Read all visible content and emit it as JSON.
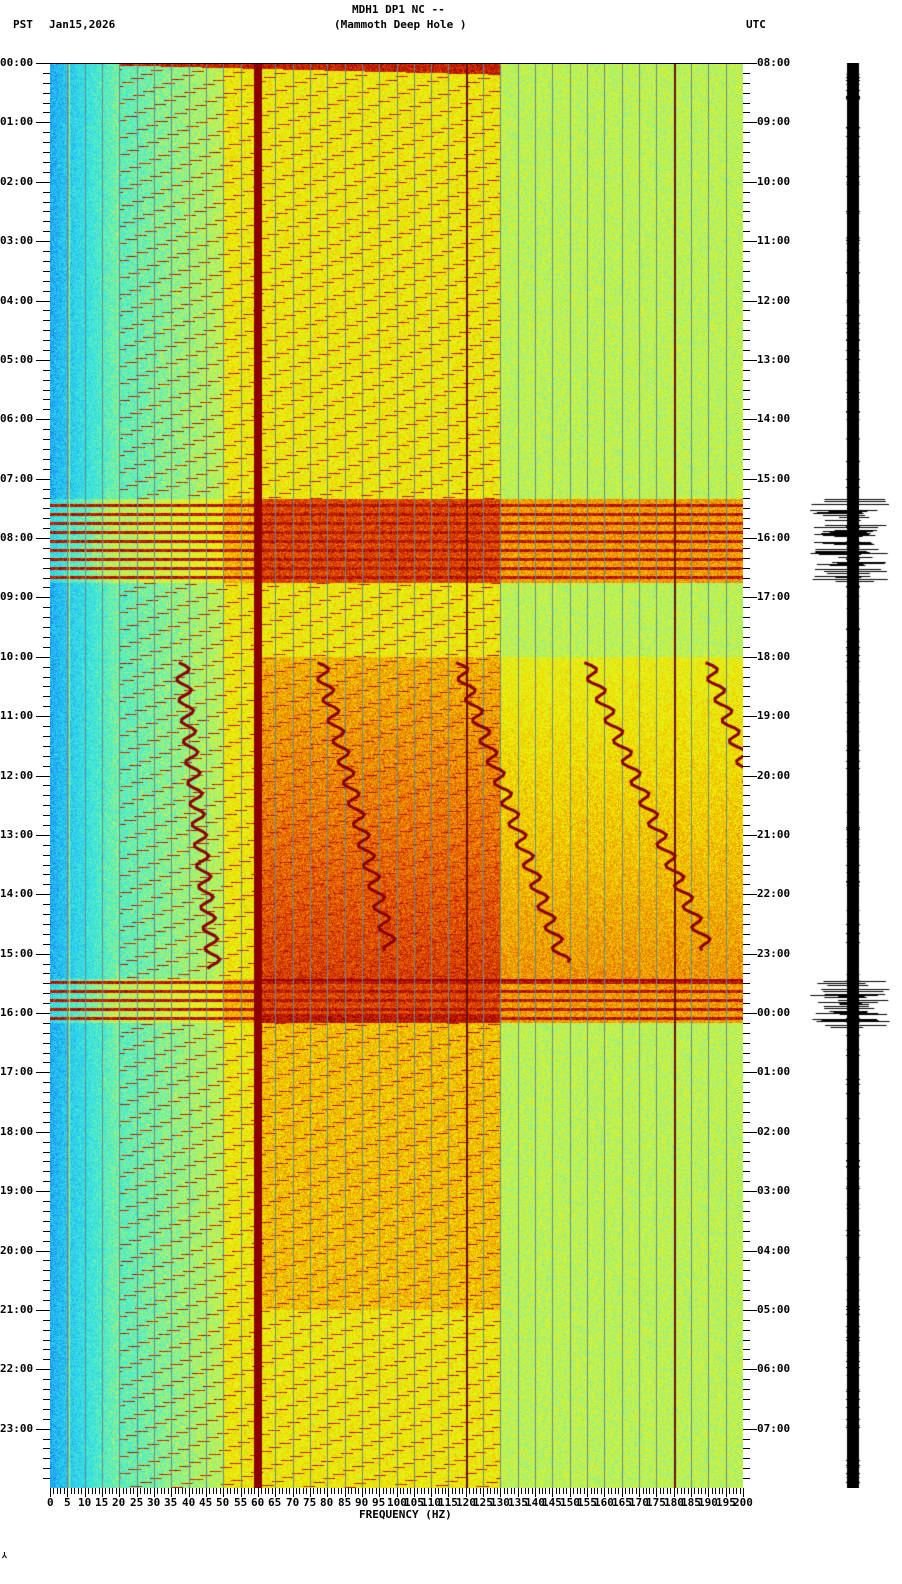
{
  "header": {
    "station_line": "MDH1 DP1 NC --",
    "site_line": "(Mammoth Deep Hole )",
    "left_tz": "PST",
    "date": "Jan15,2026",
    "right_tz": "UTC"
  },
  "footer": {
    "xlabel": "FREQUENCY (HZ)",
    "corner_mark": "⅄"
  },
  "colors": {
    "colormap": [
      "#0a3cc8",
      "#1e8cf0",
      "#28d2f0",
      "#50f0c8",
      "#c8f050",
      "#f0f000",
      "#f0a000",
      "#e03c00",
      "#9a0000"
    ],
    "trace": "#000000",
    "gridline": "#6a8a8a"
  },
  "chart_data": [
    {
      "type": "heatmap",
      "title": "MDH1 DP1 NC -- (Mammoth Deep Hole )",
      "subtitle": "Jan15,2026",
      "xlabel": "FREQUENCY (HZ)",
      "ylabel_left": "PST",
      "ylabel_right": "UTC",
      "xlim": [
        0,
        200
      ],
      "x_ticks": [
        0,
        5,
        10,
        15,
        20,
        25,
        30,
        35,
        40,
        45,
        50,
        55,
        60,
        65,
        70,
        75,
        80,
        85,
        90,
        95,
        100,
        105,
        110,
        115,
        120,
        125,
        130,
        135,
        140,
        145,
        150,
        155,
        160,
        165,
        170,
        175,
        180,
        185,
        190,
        195,
        200
      ],
      "y_ticks_left": [
        "00:00",
        "01:00",
        "02:00",
        "03:00",
        "04:00",
        "05:00",
        "06:00",
        "07:00",
        "08:00",
        "09:00",
        "10:00",
        "11:00",
        "12:00",
        "13:00",
        "14:00",
        "15:00",
        "16:00",
        "17:00",
        "18:00",
        "19:00",
        "20:00",
        "21:00",
        "22:00",
        "23:00"
      ],
      "y_ticks_right": [
        "08:00",
        "09:00",
        "10:00",
        "11:00",
        "12:00",
        "13:00",
        "14:00",
        "15:00",
        "16:00",
        "17:00",
        "18:00",
        "19:00",
        "20:00",
        "21:00",
        "22:00",
        "23:00",
        "00:00",
        "01:00",
        "02:00",
        "03:00",
        "04:00",
        "05:00",
        "06:00",
        "07:00"
      ],
      "y_minor_ticks_per_hour": 6,
      "grid": true,
      "grid_spacing_hz": 5,
      "features": {
        "persistent_lines_hz": [
          60,
          120,
          180
        ],
        "dominant_line_hz": 60,
        "low_freq_quiet_band_hz": [
          0,
          20
        ],
        "noise_bursts_pst": [
          [
            "07:20",
            "08:45"
          ],
          [
            "15:25",
            "16:10"
          ]
        ],
        "wandering_tremor_tracks_pst": [
          [
            "10:05",
            "15:20"
          ]
        ],
        "energy_trend": "higher energy above ~60 Hz during 10:00-16:00 PST"
      }
    },
    {
      "type": "line",
      "title": "Seismogram trace",
      "orientation": "vertical",
      "large_amplitude_windows_pst": [
        [
          "07:20",
          "08:45"
        ],
        [
          "15:25",
          "16:15"
        ]
      ]
    }
  ]
}
